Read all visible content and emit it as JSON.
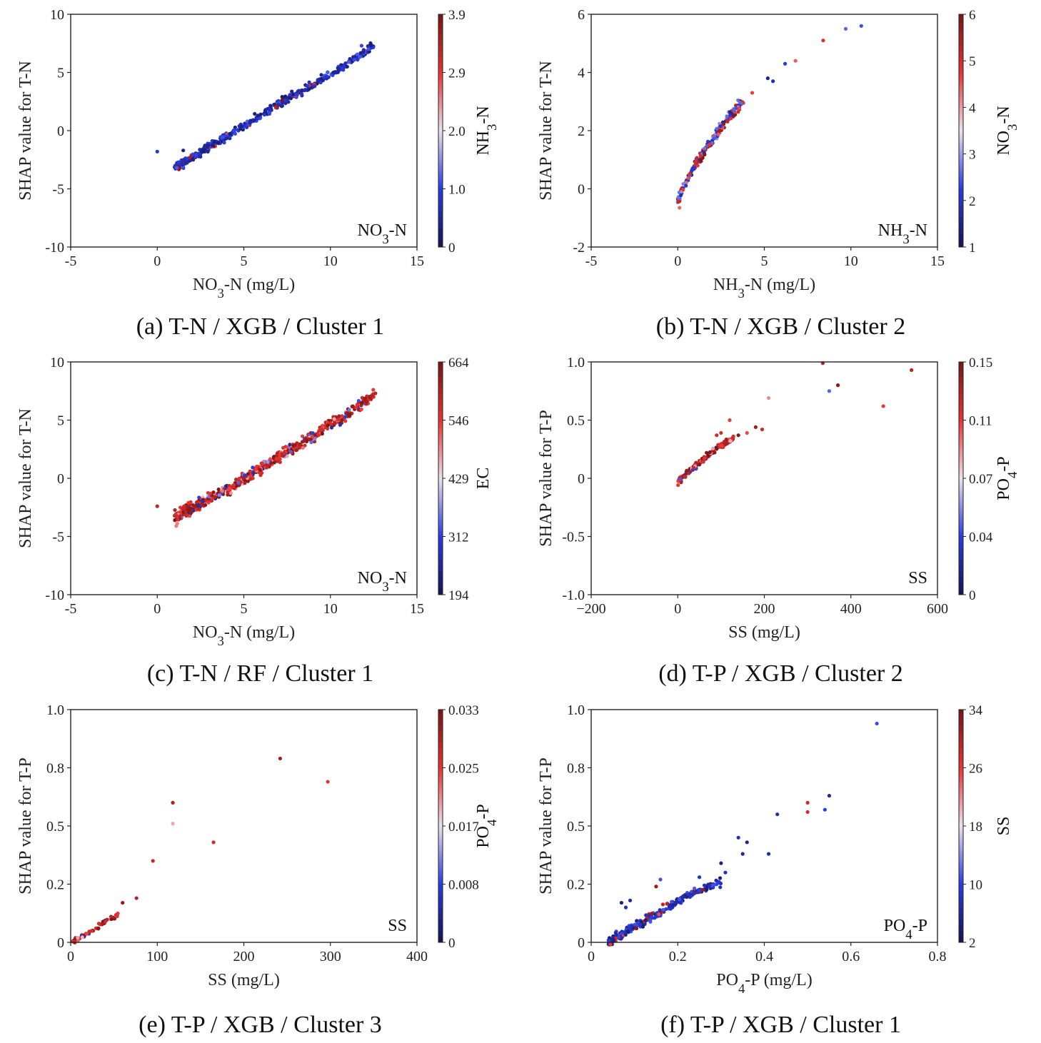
{
  "chart_data": [
    {
      "id": "a",
      "type": "scatter",
      "caption": "(a) T-N / XGB / Cluster 1",
      "xlabel": "NO3-N (mg/L)",
      "ylabel": "SHAP value for T-N",
      "inset_label": "NO3-N",
      "xlim": [
        -5,
        15
      ],
      "ylim": [
        -10,
        10
      ],
      "xticks": [
        -5,
        0,
        5,
        10,
        15
      ],
      "yticks": [
        -10,
        -5,
        0,
        5,
        10
      ],
      "xtick_labels": [
        "-5",
        "0",
        "5",
        "10",
        "15"
      ],
      "ytick_labels": [
        "-10",
        "-5",
        "0",
        "5",
        "10"
      ],
      "colorbar": {
        "label": "NH3-N",
        "ticks": [
          "0",
          "1.0",
          "2.0",
          "2.9",
          "3.9"
        ]
      },
      "color_scheme": "mostly-blue",
      "trend": {
        "x0": 1.0,
        "x1": 12.5,
        "y_at": [
          [
            1.0,
            -3.2
          ],
          [
            4.0,
            -0.5
          ],
          [
            7.0,
            2.3
          ],
          [
            10.0,
            4.8
          ],
          [
            12.5,
            7.3
          ]
        ],
        "noise": 0.35,
        "n": 420
      },
      "extra_points": [
        [
          0.0,
          -1.8
        ],
        [
          12.2,
          7.0
        ],
        [
          11.8,
          7.3
        ],
        [
          1.5,
          -1.7
        ]
      ]
    },
    {
      "id": "b",
      "type": "scatter",
      "caption": "(b) T-N / XGB / Cluster 2",
      "xlabel": "NH3-N (mg/L)",
      "ylabel": "SHAP value for T-N",
      "inset_label": "NH3-N",
      "xlim": [
        -5,
        15
      ],
      "ylim": [
        -2,
        6
      ],
      "xticks": [
        -5,
        0,
        5,
        10,
        15
      ],
      "yticks": [
        -2,
        0,
        2,
        4,
        6
      ],
      "xtick_labels": [
        "-5",
        "0",
        "5",
        "10",
        "15"
      ],
      "ytick_labels": [
        "-2",
        "0",
        "2",
        "4",
        "6"
      ],
      "colorbar": {
        "label": "NO3-N",
        "ticks": [
          "1",
          "2",
          "3",
          "4",
          "5",
          "6"
        ]
      },
      "color_scheme": "mixed",
      "trend": {
        "x0": 0.0,
        "x1": 3.8,
        "y_at": [
          [
            0.0,
            -0.4
          ],
          [
            0.5,
            0.3
          ],
          [
            1.0,
            0.8
          ],
          [
            2.0,
            1.7
          ],
          [
            3.0,
            2.5
          ],
          [
            3.8,
            3.0
          ]
        ],
        "noise": 0.18,
        "n": 190
      },
      "extra_points": [
        [
          4.3,
          3.3
        ],
        [
          5.2,
          3.8
        ],
        [
          5.5,
          3.7
        ],
        [
          6.2,
          4.3
        ],
        [
          6.8,
          4.4
        ],
        [
          8.4,
          5.1
        ],
        [
          9.7,
          5.5
        ],
        [
          10.6,
          5.6
        ],
        [
          0.1,
          -0.65
        ]
      ]
    },
    {
      "id": "c",
      "type": "scatter",
      "caption": "(c) T-N / RF / Cluster 1",
      "xlabel": "NO3-N (mg/L)",
      "ylabel": "SHAP value for T-N",
      "inset_label": "NO3-N",
      "xlim": [
        -5,
        15
      ],
      "ylim": [
        -10,
        10
      ],
      "xticks": [
        -5,
        0,
        5,
        10,
        15
      ],
      "yticks": [
        -10,
        -5,
        0,
        5,
        10
      ],
      "xtick_labels": [
        "-5",
        "0",
        "5",
        "10",
        "15"
      ],
      "ytick_labels": [
        "-10",
        "-5",
        "0",
        "5",
        "10"
      ],
      "colorbar": {
        "label": "EC",
        "ticks": [
          "194",
          "312",
          "429",
          "546",
          "664"
        ]
      },
      "color_scheme": "mostly-red",
      "trend": {
        "x0": 1.0,
        "x1": 12.5,
        "y_at": [
          [
            1.0,
            -3.3
          ],
          [
            4.0,
            -1.0
          ],
          [
            7.0,
            1.8
          ],
          [
            10.0,
            4.6
          ],
          [
            12.5,
            7.2
          ]
        ],
        "noise": 0.5,
        "n": 520
      },
      "extra_points": [
        [
          0.0,
          -2.4
        ],
        [
          1.1,
          -4.1
        ],
        [
          12.6,
          7.3
        ]
      ]
    },
    {
      "id": "d",
      "type": "scatter",
      "caption": "(d) T-P / XGB / Cluster 2",
      "xlabel": "SS (mg/L)",
      "ylabel": "SHAP value for T-P",
      "inset_label": "SS",
      "xlim": [
        -200,
        600
      ],
      "ylim": [
        -1.0,
        1.0
      ],
      "xticks": [
        -200,
        0,
        200,
        400,
        600
      ],
      "yticks": [
        -1.0,
        -0.5,
        0,
        0.5,
        1.0
      ],
      "xtick_labels": [
        "−200",
        "0",
        "200",
        "400",
        "600"
      ],
      "ytick_labels": [
        "-1.0",
        "-0.5",
        "0",
        "0.5",
        "1.0"
      ],
      "colorbar": {
        "label": "PO4-P",
        "ticks": [
          "0",
          "0.04",
          "0.07",
          "0.11",
          "0.15"
        ]
      },
      "color_scheme": "mostly-red",
      "trend": {
        "x0": 0,
        "x1": 130,
        "y_at": [
          [
            0,
            -0.03
          ],
          [
            40,
            0.1
          ],
          [
            80,
            0.23
          ],
          [
            130,
            0.35
          ]
        ],
        "noise": 0.025,
        "n": 150
      },
      "extra_points": [
        [
          120,
          0.5
        ],
        [
          180,
          0.44
        ],
        [
          195,
          0.42
        ],
        [
          210,
          0.69
        ],
        [
          160,
          0.39
        ],
        [
          140,
          0.37
        ],
        [
          335,
          0.99
        ],
        [
          350,
          0.75
        ],
        [
          370,
          0.8
        ],
        [
          475,
          0.62
        ],
        [
          540,
          0.93
        ],
        [
          100,
          0.39
        ],
        [
          90,
          0.37
        ]
      ]
    },
    {
      "id": "e",
      "type": "scatter",
      "caption": "(e) T-P / XGB / Cluster 3",
      "xlabel": "SS (mg/L)",
      "ylabel": "SHAP value for T-P",
      "inset_label": "SS",
      "xlim": [
        0,
        400
      ],
      "ylim": [
        0,
        1.0
      ],
      "xticks": [
        0,
        100,
        200,
        300,
        400
      ],
      "yticks": [
        0,
        0.25,
        0.5,
        0.75,
        1.0
      ],
      "xtick_labels": [
        "0",
        "100",
        "200",
        "300",
        "400"
      ],
      "ytick_labels": [
        "0",
        "0.2",
        "0.5",
        "0.8",
        "1.0"
      ],
      "colorbar": {
        "label": "PO4-P",
        "ticks": [
          "0",
          "0.008",
          "0.017",
          "0.025",
          "0.033"
        ]
      },
      "color_scheme": "mostly-red",
      "trend": {
        "x0": 2,
        "x1": 55,
        "y_at": [
          [
            2,
            0.0
          ],
          [
            20,
            0.04
          ],
          [
            40,
            0.09
          ],
          [
            55,
            0.12
          ]
        ],
        "noise": 0.01,
        "n": 60
      },
      "extra_points": [
        [
          60,
          0.17
        ],
        [
          76,
          0.19
        ],
        [
          95,
          0.35
        ],
        [
          118,
          0.6
        ],
        [
          118,
          0.51
        ],
        [
          165,
          0.43
        ],
        [
          242,
          0.79
        ],
        [
          297,
          0.69
        ]
      ]
    },
    {
      "id": "f",
      "type": "scatter",
      "caption": "(f) T-P / XGB / Cluster 1",
      "xlabel": "PO4-P (mg/L)",
      "ylabel": "SHAP value for T-P",
      "inset_label": "PO4-P",
      "xlim": [
        0,
        0.8
      ],
      "ylim": [
        0,
        1.0
      ],
      "xticks": [
        0,
        0.2,
        0.4,
        0.6,
        0.8
      ],
      "yticks": [
        0,
        0.25,
        0.5,
        0.75,
        1.0
      ],
      "xtick_labels": [
        "0",
        "0.2",
        "0.4",
        "0.6",
        "0.8"
      ],
      "ytick_labels": [
        "0",
        "0.2",
        "0.5",
        "0.8",
        "1.0"
      ],
      "colorbar": {
        "label": "SS",
        "ticks": [
          "2",
          "10",
          "18",
          "26",
          "34"
        ]
      },
      "color_scheme": "mostly-blue",
      "trend": {
        "x0": 0.04,
        "x1": 0.3,
        "y_at": [
          [
            0.04,
            0.0
          ],
          [
            0.1,
            0.07
          ],
          [
            0.15,
            0.12
          ],
          [
            0.22,
            0.2
          ],
          [
            0.3,
            0.26
          ]
        ],
        "noise": 0.018,
        "n": 260
      },
      "extra_points": [
        [
          0.07,
          0.17
        ],
        [
          0.08,
          0.15
        ],
        [
          0.09,
          0.18
        ],
        [
          0.15,
          0.24
        ],
        [
          0.16,
          0.27
        ],
        [
          0.25,
          0.28
        ],
        [
          0.3,
          0.34
        ],
        [
          0.31,
          0.3
        ],
        [
          0.34,
          0.45
        ],
        [
          0.36,
          0.43
        ],
        [
          0.35,
          0.38
        ],
        [
          0.41,
          0.38
        ],
        [
          0.43,
          0.55
        ],
        [
          0.5,
          0.56
        ],
        [
          0.5,
          0.6
        ],
        [
          0.54,
          0.57
        ],
        [
          0.55,
          0.63
        ],
        [
          0.66,
          0.94
        ]
      ]
    }
  ]
}
